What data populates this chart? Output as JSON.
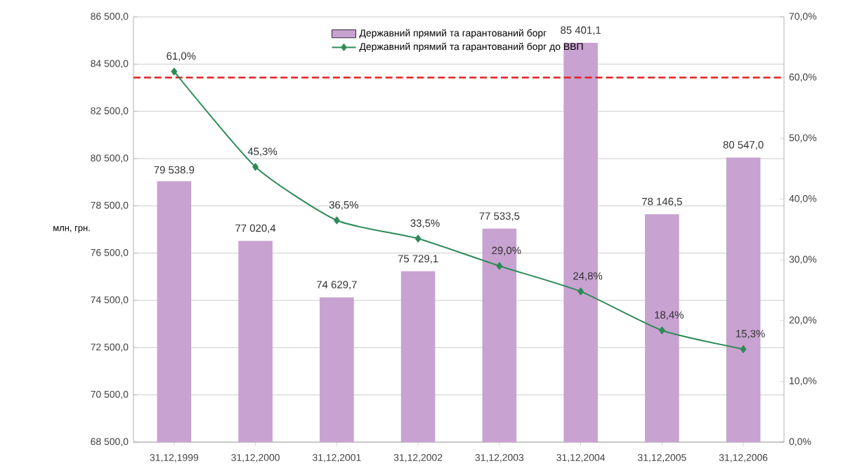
{
  "chart_data": {
    "type": "bar",
    "categories": [
      "31,12,1999",
      "31,12,2000",
      "31,12,2001",
      "31,12,2002",
      "31,12,2003",
      "31,12,2004",
      "31,12,2005",
      "31,12,2006"
    ],
    "ylabel": "млн, грн.",
    "ylim": [
      68500,
      86500
    ],
    "yticks": [
      {
        "value": 68500,
        "label": "68 500,0"
      },
      {
        "value": 70500,
        "label": "70 500,0"
      },
      {
        "value": 72500,
        "label": "72 500,0"
      },
      {
        "value": 74500,
        "label": "74 500,0"
      },
      {
        "value": 76500,
        "label": "76 500,0"
      },
      {
        "value": 78500,
        "label": "78 500,0"
      },
      {
        "value": 80500,
        "label": "80 500,0"
      },
      {
        "value": 82500,
        "label": "82 500,0"
      },
      {
        "value": 84500,
        "label": "84 500,0"
      },
      {
        "value": 86500,
        "label": "86 500,0"
      }
    ],
    "y2lim": [
      0,
      70
    ],
    "y2ticks": [
      {
        "value": 0,
        "label": "0,0%"
      },
      {
        "value": 10,
        "label": "10,0%"
      },
      {
        "value": 20,
        "label": "20,0%"
      },
      {
        "value": 30,
        "label": "30,0%"
      },
      {
        "value": 40,
        "label": "40,0%"
      },
      {
        "value": 50,
        "label": "50,0%"
      },
      {
        "value": 60,
        "label": "60,0%"
      },
      {
        "value": 70,
        "label": "70,0%"
      }
    ],
    "grid": "y",
    "legend": "top",
    "series": [
      {
        "name": "Державний прямий та гарантований борг",
        "color": "#c8a2d0",
        "values": [
          79538.9,
          77020.4,
          74629.7,
          75729.1,
          77533.5,
          85401.1,
          78146.5,
          80547.0
        ],
        "value_labels": [
          "79 538.9",
          "77 020,4",
          "74 629,7",
          "75 729,1",
          "77 533,5",
          "85 401,1",
          "78 146,5",
          "80 547,0"
        ]
      },
      {
        "name": "Державний прямий та гарантований борг до ВВП",
        "type": "line",
        "axis": "y2",
        "color": "#2e8b57",
        "marker": "diamond",
        "values": [
          61.0,
          45.3,
          36.5,
          33.5,
          29.0,
          24.8,
          18.4,
          15.3
        ],
        "value_labels": [
          "61,0%",
          "45,3%",
          "36,5%",
          "33,5%",
          "29,0%",
          "24,8%",
          "18,4%",
          "15,3%"
        ]
      }
    ],
    "ref_lines": [
      {
        "axis": "y2",
        "value": 60,
        "color": "#e02020",
        "line_style": "dashed"
      }
    ]
  }
}
